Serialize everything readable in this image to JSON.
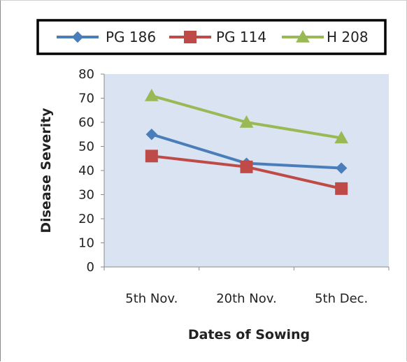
{
  "chart_data": {
    "type": "line",
    "title": "",
    "xlabel": "Dates of Sowing",
    "ylabel": "Disease Severity",
    "categories": [
      "5th Nov.",
      "20th Nov.",
      "5th Dec."
    ],
    "ylim": [
      0,
      80
    ],
    "yticks": [
      0,
      10,
      20,
      30,
      40,
      50,
      60,
      70,
      80
    ],
    "grid": false,
    "plot_background": "#d9e3f1",
    "legend_position": "top",
    "series": [
      {
        "name": "PG 186",
        "values": [
          55,
          43,
          41
        ],
        "color": "#4a7ebb",
        "marker": "diamond"
      },
      {
        "name": "PG 114",
        "values": [
          46,
          41.5,
          32.5
        ],
        "color": "#be4b48",
        "marker": "square"
      },
      {
        "name": "H 208",
        "values": [
          71,
          60,
          53.5
        ],
        "color": "#98b954",
        "marker": "triangle"
      }
    ]
  }
}
